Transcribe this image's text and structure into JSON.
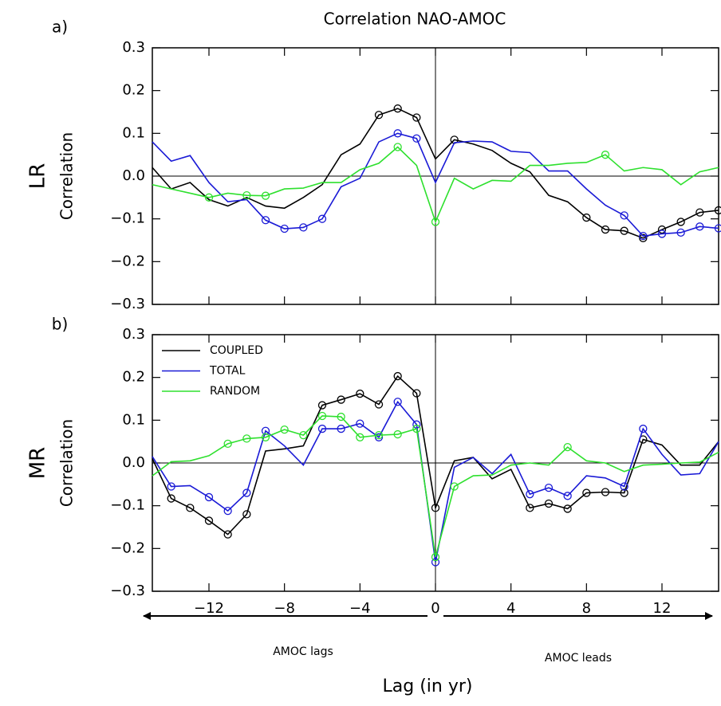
{
  "chart_data": [
    {
      "type": "line",
      "title": "Correlation NAO-AMOC",
      "panel_label": "a)",
      "row_label": "LR",
      "ylabel": "Correlation",
      "x": [
        -15,
        -14,
        -13,
        -12,
        -11,
        -10,
        -9,
        -8,
        -7,
        -6,
        -5,
        -4,
        -3,
        -2,
        -1,
        0,
        1,
        2,
        3,
        4,
        5,
        6,
        7,
        8,
        9,
        10,
        11,
        12,
        13,
        14,
        15
      ],
      "series": [
        {
          "name": "COUPLED",
          "color": "#000000",
          "values": [
            0.02,
            -0.03,
            -0.015,
            -0.055,
            -0.07,
            -0.05,
            -0.07,
            -0.075,
            -0.05,
            -0.02,
            0.05,
            0.075,
            0.143,
            0.158,
            0.137,
            0.04,
            0.085,
            0.075,
            0.06,
            0.03,
            0.01,
            -0.045,
            -0.06,
            -0.097,
            -0.125,
            -0.128,
            -0.145,
            -0.125,
            -0.107,
            -0.085,
            -0.08
          ],
          "circled": [
            -3,
            -2,
            -1,
            1,
            8,
            9,
            10,
            11,
            12,
            13,
            14,
            15
          ]
        },
        {
          "name": "TOTAL",
          "color": "#1a1ad6",
          "values": [
            0.08,
            0.035,
            0.048,
            -0.015,
            -0.06,
            -0.055,
            -0.103,
            -0.123,
            -0.12,
            -0.1,
            -0.025,
            -0.005,
            0.08,
            0.1,
            0.088,
            -0.015,
            0.078,
            0.082,
            0.08,
            0.058,
            0.055,
            0.012,
            0.012,
            -0.03,
            -0.068,
            -0.092,
            -0.14,
            -0.135,
            -0.132,
            -0.118,
            -0.122
          ],
          "circled": [
            -9,
            -8,
            -7,
            -6,
            -2,
            -1,
            10,
            11,
            12,
            13,
            14,
            15
          ]
        },
        {
          "name": "RANDOM",
          "color": "#2ee02e",
          "values": [
            -0.02,
            -0.03,
            -0.04,
            -0.05,
            -0.04,
            -0.045,
            -0.046,
            -0.03,
            -0.028,
            -0.015,
            -0.015,
            0.015,
            0.03,
            0.068,
            0.025,
            -0.107,
            -0.005,
            -0.03,
            -0.01,
            -0.012,
            0.025,
            0.025,
            0.03,
            0.032,
            0.05,
            0.012,
            0.02,
            0.015,
            -0.02,
            0.01,
            0.02
          ],
          "circled": [
            -12,
            -10,
            -9,
            -2,
            0,
            9
          ]
        }
      ],
      "xlim": [
        -15,
        15
      ],
      "ylim": [
        -0.3,
        0.3
      ],
      "xticks": [
        -12,
        -8,
        -4,
        0,
        4,
        8,
        12
      ],
      "show_xtick_labels": false,
      "yticks": [
        {
          "value": -0.3,
          "label": "−0.3"
        },
        {
          "value": -0.2,
          "label": "−0.2"
        },
        {
          "value": -0.1,
          "label": "−0.1"
        },
        {
          "value": 0,
          "label": "0.0"
        },
        0.1,
        0.2,
        0.3
      ]
    },
    {
      "type": "line",
      "panel_label": "b)",
      "row_label": "MR",
      "ylabel": "Correlation",
      "xlabel": "Lag (in yr)",
      "annotations": [
        "AMOC lags",
        "AMOC leads"
      ],
      "legend": "upper left",
      "x": [
        -15,
        -14,
        -13,
        -12,
        -11,
        -10,
        -9,
        -8,
        -7,
        -6,
        -5,
        -4,
        -3,
        -2,
        -1,
        0,
        1,
        2,
        3,
        4,
        5,
        6,
        7,
        8,
        9,
        10,
        11,
        12,
        13,
        14,
        15
      ],
      "series": [
        {
          "name": "COUPLED",
          "color": "#000000",
          "values": [
            0.01,
            -0.083,
            -0.105,
            -0.135,
            -0.167,
            -0.12,
            0.028,
            0.033,
            0.04,
            0.135,
            0.148,
            0.162,
            0.137,
            0.203,
            0.163,
            -0.105,
            0.005,
            0.013,
            -0.037,
            -0.015,
            -0.105,
            -0.095,
            -0.107,
            -0.07,
            -0.068,
            -0.07,
            0.055,
            0.042,
            -0.005,
            -0.005,
            0.05
          ],
          "circled": [
            -14,
            -13,
            -12,
            -11,
            -10,
            -6,
            -5,
            -4,
            -3,
            -2,
            -1,
            0,
            5,
            6,
            7,
            8,
            9,
            10,
            11
          ]
        },
        {
          "name": "TOTAL",
          "color": "#1a1ad6",
          "values": [
            0.015,
            -0.055,
            -0.053,
            -0.08,
            -0.112,
            -0.07,
            0.075,
            0.04,
            -0.005,
            0.08,
            0.08,
            0.092,
            0.06,
            0.143,
            0.09,
            -0.232,
            -0.01,
            0.013,
            -0.025,
            0.02,
            -0.073,
            -0.058,
            -0.077,
            -0.03,
            -0.035,
            -0.055,
            0.08,
            0.02,
            -0.028,
            -0.025,
            0.05
          ],
          "circled": [
            -14,
            -12,
            -11,
            -10,
            -9,
            -6,
            -5,
            -4,
            -3,
            -2,
            -1,
            0,
            5,
            6,
            7,
            10,
            11
          ]
        },
        {
          "name": "RANDOM",
          "color": "#2ee02e",
          "values": [
            -0.03,
            0.003,
            0.005,
            0.017,
            0.045,
            0.057,
            0.06,
            0.078,
            0.065,
            0.11,
            0.108,
            0.06,
            0.065,
            0.067,
            0.08,
            -0.22,
            -0.055,
            -0.03,
            -0.028,
            -0.005,
            0.0,
            -0.005,
            0.037,
            0.005,
            0.0,
            -0.02,
            -0.005,
            -0.003,
            0.0,
            0.002,
            0.025
          ],
          "circled": [
            -11,
            -10,
            -9,
            -8,
            -7,
            -6,
            -5,
            -4,
            -3,
            -2,
            -1,
            0,
            1,
            7
          ]
        }
      ],
      "xlim": [
        -15,
        15
      ],
      "ylim": [
        -0.3,
        0.3
      ],
      "xticks": [
        {
          "value": -12,
          "label": "−12"
        },
        {
          "value": -8,
          "label": "−8"
        },
        {
          "value": -4,
          "label": "−4"
        },
        0,
        4,
        8,
        12
      ],
      "show_xtick_labels": true,
      "yticks": [
        {
          "value": -0.3,
          "label": "−0.3"
        },
        {
          "value": -0.2,
          "label": "−0.2"
        },
        {
          "value": -0.1,
          "label": "−0.1"
        },
        {
          "value": 0,
          "label": "0.0"
        },
        0.1,
        0.2,
        0.3
      ]
    }
  ]
}
